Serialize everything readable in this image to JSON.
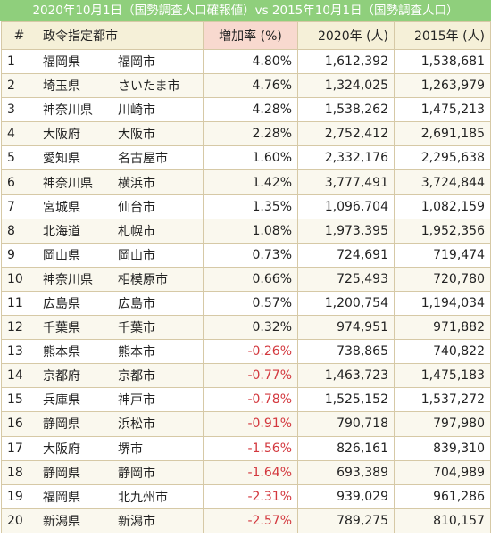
{
  "title": "2020年10月1日（国勢調査人口確報値）vs 2015年10月1日（国勢調査人口）",
  "headers": {
    "no": "#",
    "city": "政令指定都市",
    "rate": "増加率 (%)",
    "pop2020": "2020年 (人)",
    "pop2015": "2015年 (人)"
  },
  "colors": {
    "banner": "#8fcf7c",
    "negative": "#d3383e",
    "header_rate": "#f8d9cf"
  },
  "rows": [
    {
      "no": "1",
      "pref": "福岡県",
      "city": "福岡市",
      "rate": "4.80%",
      "pop2020": "1,612,392",
      "pop2015": "1,538,681"
    },
    {
      "no": "2",
      "pref": "埼玉県",
      "city": "さいたま市",
      "rate": "4.76%",
      "pop2020": "1,324,025",
      "pop2015": "1,263,979"
    },
    {
      "no": "3",
      "pref": "神奈川県",
      "city": "川崎市",
      "rate": "4.28%",
      "pop2020": "1,538,262",
      "pop2015": "1,475,213"
    },
    {
      "no": "4",
      "pref": "大阪府",
      "city": "大阪市",
      "rate": "2.28%",
      "pop2020": "2,752,412",
      "pop2015": "2,691,185"
    },
    {
      "no": "5",
      "pref": "愛知県",
      "city": "名古屋市",
      "rate": "1.60%",
      "pop2020": "2,332,176",
      "pop2015": "2,295,638"
    },
    {
      "no": "6",
      "pref": "神奈川県",
      "city": "横浜市",
      "rate": "1.42%",
      "pop2020": "3,777,491",
      "pop2015": "3,724,844"
    },
    {
      "no": "7",
      "pref": "宮城県",
      "city": "仙台市",
      "rate": "1.35%",
      "pop2020": "1,096,704",
      "pop2015": "1,082,159"
    },
    {
      "no": "8",
      "pref": "北海道",
      "city": "札幌市",
      "rate": "1.08%",
      "pop2020": "1,973,395",
      "pop2015": "1,952,356"
    },
    {
      "no": "9",
      "pref": "岡山県",
      "city": "岡山市",
      "rate": "0.73%",
      "pop2020": "724,691",
      "pop2015": "719,474"
    },
    {
      "no": "10",
      "pref": "神奈川県",
      "city": "相模原市",
      "rate": "0.66%",
      "pop2020": "725,493",
      "pop2015": "720,780"
    },
    {
      "no": "11",
      "pref": "広島県",
      "city": "広島市",
      "rate": "0.57%",
      "pop2020": "1,200,754",
      "pop2015": "1,194,034"
    },
    {
      "no": "12",
      "pref": "千葉県",
      "city": "千葉市",
      "rate": "0.32%",
      "pop2020": "974,951",
      "pop2015": "971,882"
    },
    {
      "no": "13",
      "pref": "熊本県",
      "city": "熊本市",
      "rate": "-0.26%",
      "pop2020": "738,865",
      "pop2015": "740,822"
    },
    {
      "no": "14",
      "pref": "京都府",
      "city": "京都市",
      "rate": "-0.77%",
      "pop2020": "1,463,723",
      "pop2015": "1,475,183"
    },
    {
      "no": "15",
      "pref": "兵庫県",
      "city": "神戸市",
      "rate": "-0.78%",
      "pop2020": "1,525,152",
      "pop2015": "1,537,272"
    },
    {
      "no": "16",
      "pref": "静岡県",
      "city": "浜松市",
      "rate": "-0.91%",
      "pop2020": "790,718",
      "pop2015": "797,980"
    },
    {
      "no": "17",
      "pref": "大阪府",
      "city": "堺市",
      "rate": "-1.56%",
      "pop2020": "826,161",
      "pop2015": "839,310"
    },
    {
      "no": "18",
      "pref": "静岡県",
      "city": "静岡市",
      "rate": "-1.64%",
      "pop2020": "693,389",
      "pop2015": "704,989"
    },
    {
      "no": "19",
      "pref": "福岡県",
      "city": "北九州市",
      "rate": "-2.31%",
      "pop2020": "939,029",
      "pop2015": "961,286"
    },
    {
      "no": "20",
      "pref": "新潟県",
      "city": "新潟市",
      "rate": "-2.57%",
      "pop2020": "789,275",
      "pop2015": "810,157"
    }
  ]
}
